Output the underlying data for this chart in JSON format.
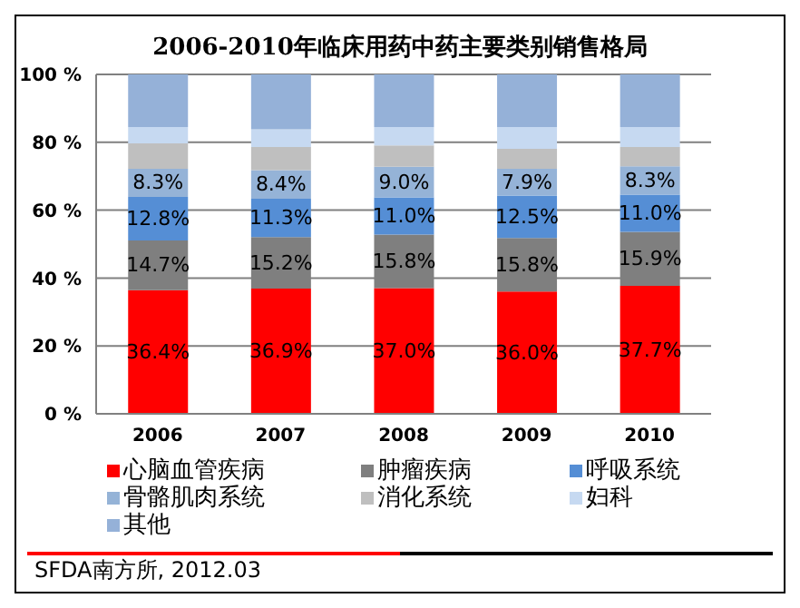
{
  "chart_data": {
    "type": "bar",
    "title": "2006-2010年临床用药中药主要类别销售格局",
    "categories": [
      "2006",
      "2007",
      "2008",
      "2009",
      "2010"
    ],
    "stacked": true,
    "series": [
      {
        "name": "心脑血管疾病",
        "color": "#ff0000",
        "values": [
          36.4,
          36.9,
          37.0,
          36.0,
          37.7
        ],
        "value_labels": [
          "36.4%",
          "36.9%",
          "37.0%",
          "36.0%",
          "37.7%"
        ]
      },
      {
        "name": "肿瘤疾病",
        "color": "#7f7f7f",
        "values": [
          14.7,
          15.2,
          15.8,
          15.8,
          15.9
        ],
        "value_labels": [
          "14.7%",
          "15.2%",
          "15.8%",
          "15.8%",
          "15.9%"
        ]
      },
      {
        "name": "呼吸系统",
        "color": "#558ed5",
        "values": [
          12.8,
          11.3,
          11.0,
          12.5,
          11.0
        ],
        "value_labels": [
          "12.8%",
          "11.3%",
          "11.0%",
          "12.5%",
          "11.0%"
        ]
      },
      {
        "name": "骨骼肌肉系统",
        "color": "#95b3d7",
        "values": [
          8.3,
          8.4,
          9.0,
          7.9,
          8.3
        ],
        "value_labels": [
          "8.3%",
          "8.4%",
          "9.0%",
          "7.9%",
          "8.3%"
        ]
      },
      {
        "name": "消化系统",
        "color": "#bfbfbf",
        "values": [
          7.5,
          6.8,
          6.3,
          5.9,
          5.7
        ]
      },
      {
        "name": "妇科",
        "color": "#c6d9f1",
        "values": [
          4.8,
          5.2,
          5.4,
          6.4,
          5.9
        ]
      },
      {
        "name": "其他",
        "color": "#95b1d8",
        "values": [
          15.5,
          16.2,
          15.5,
          15.5,
          15.5
        ]
      }
    ],
    "ylim": [
      0,
      100
    ],
    "yticks": [
      {
        "value": 0,
        "label": "0 %"
      },
      {
        "value": 20,
        "label": "20 %"
      },
      {
        "value": 40,
        "label": "40 %"
      },
      {
        "value": 60,
        "label": "60 %"
      },
      {
        "value": 80,
        "label": "80 %"
      },
      {
        "value": 100,
        "label": "100 %"
      }
    ],
    "grid": "y",
    "legend": "bottom",
    "annotations": [
      "SFDA南方所, 2012.03"
    ]
  }
}
